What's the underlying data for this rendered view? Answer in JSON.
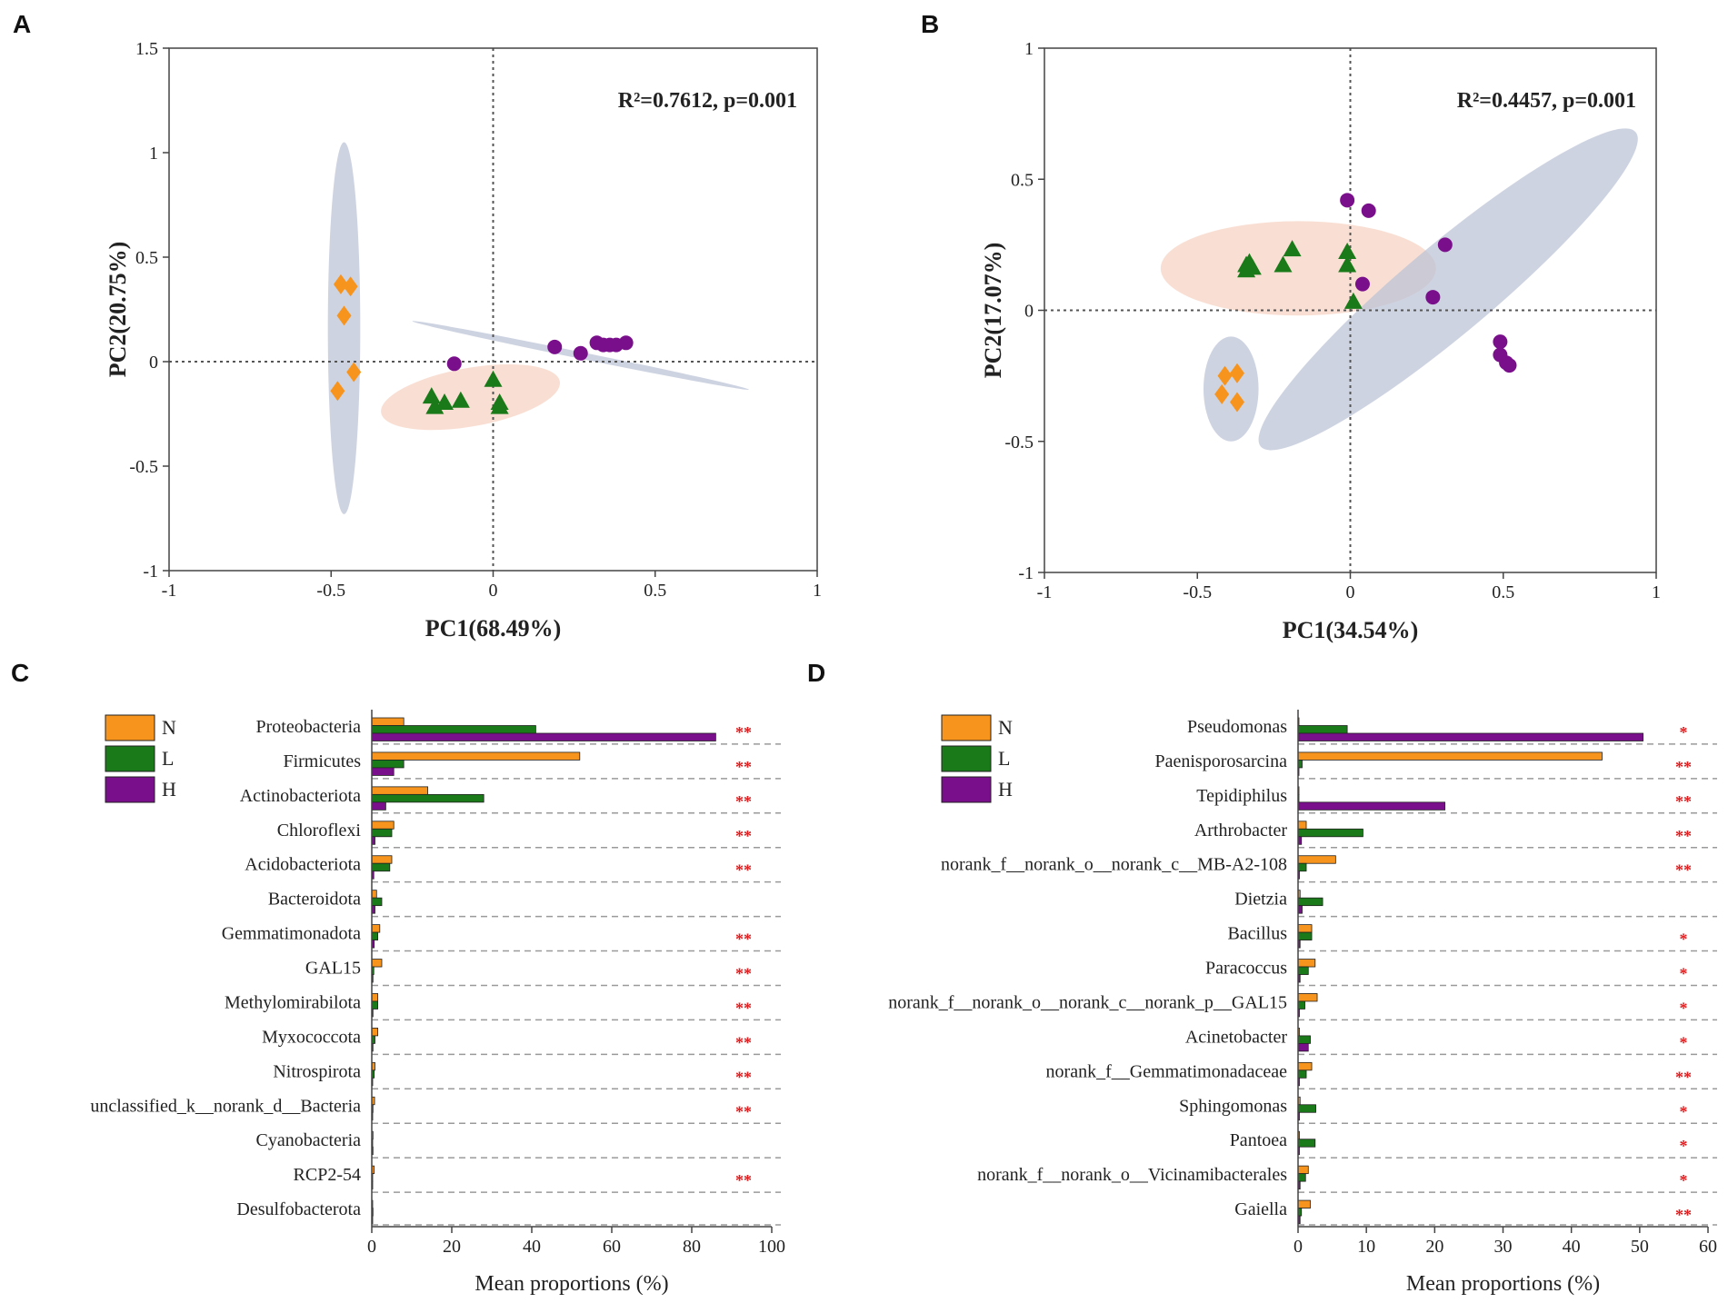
{
  "colors": {
    "N": "#f7941d",
    "L": "#1a7a1a",
    "H": "#7a0f8c",
    "ellipse_blue": "#b9c0d4",
    "ellipse_pink": "#f5c9b5",
    "sig": "#e31a1c"
  },
  "chart_data": [
    {
      "panel": "A",
      "type": "scatter",
      "xlabel": "PC1(68.49%)",
      "ylabel": "PC2(20.75%)",
      "xlim": [
        -1,
        1
      ],
      "ylim": [
        -1,
        1.5
      ],
      "xticks": [
        "-1",
        "-0.5",
        "0",
        "0.5",
        "1"
      ],
      "yticks": [
        "-1",
        "-0.5",
        "0",
        "0.5",
        "1",
        "1.5"
      ],
      "annotation": "R²=0.7612, p=0.001",
      "series": [
        {
          "name": "N",
          "marker": "diamond",
          "points": [
            [
              -0.47,
              0.37
            ],
            [
              -0.44,
              0.36
            ],
            [
              -0.46,
              0.22
            ],
            [
              -0.43,
              -0.05
            ],
            [
              -0.48,
              -0.14
            ]
          ]
        },
        {
          "name": "L",
          "marker": "triangle",
          "points": [
            [
              -0.19,
              -0.17
            ],
            [
              -0.18,
              -0.22
            ],
            [
              -0.15,
              -0.2
            ],
            [
              -0.1,
              -0.19
            ],
            [
              0.0,
              -0.09
            ],
            [
              0.02,
              -0.2
            ],
            [
              0.02,
              -0.22
            ]
          ]
        },
        {
          "name": "H",
          "marker": "circle",
          "points": [
            [
              -0.12,
              -0.01
            ],
            [
              0.19,
              0.07
            ],
            [
              0.27,
              0.04
            ],
            [
              0.32,
              0.09
            ],
            [
              0.34,
              0.08
            ],
            [
              0.36,
              0.08
            ],
            [
              0.38,
              0.08
            ],
            [
              0.41,
              0.09
            ]
          ]
        }
      ],
      "ellipses": [
        {
          "group": "N",
          "color": "blue",
          "center": [
            -0.46,
            0.16
          ],
          "rx": 0.05,
          "ry": 0.89,
          "angle": 0
        },
        {
          "group": "L",
          "color": "pink",
          "center": [
            -0.07,
            -0.17
          ],
          "rx": 0.28,
          "ry": 0.14,
          "angle": 10
        },
        {
          "group": "H",
          "color": "blue",
          "center": [
            0.27,
            0.03
          ],
          "rx": 0.53,
          "ry": 0.016,
          "angle": -11.5
        }
      ]
    },
    {
      "panel": "B",
      "type": "scatter",
      "xlabel": "PC1(34.54%)",
      "ylabel": "PC2(17.07%)",
      "xlim": [
        -1,
        1
      ],
      "ylim": [
        -1,
        1
      ],
      "xticks": [
        "-1",
        "-0.5",
        "0",
        "0.5",
        "1"
      ],
      "yticks": [
        "-1",
        "-0.5",
        "0",
        "0.5",
        "1"
      ],
      "annotation": "R²=0.4457, p=0.001",
      "series": [
        {
          "name": "N",
          "marker": "diamond",
          "points": [
            [
              -0.41,
              -0.25
            ],
            [
              -0.37,
              -0.24
            ],
            [
              -0.42,
              -0.32
            ],
            [
              -0.37,
              -0.35
            ]
          ]
        },
        {
          "name": "L",
          "marker": "triangle",
          "points": [
            [
              -0.34,
              0.17
            ],
            [
              -0.33,
              0.18
            ],
            [
              -0.32,
              0.16
            ],
            [
              -0.34,
              0.15
            ],
            [
              -0.22,
              0.17
            ],
            [
              -0.19,
              0.23
            ],
            [
              -0.01,
              0.22
            ],
            [
              -0.01,
              0.17
            ],
            [
              0.01,
              0.03
            ]
          ]
        },
        {
          "name": "H",
          "marker": "circle",
          "points": [
            [
              -0.01,
              0.42
            ],
            [
              0.06,
              0.38
            ],
            [
              0.04,
              0.1
            ],
            [
              0.31,
              0.25
            ],
            [
              0.27,
              0.05
            ],
            [
              0.49,
              -0.12
            ],
            [
              0.49,
              -0.17
            ],
            [
              0.51,
              -0.2
            ],
            [
              0.52,
              -0.21
            ]
          ]
        }
      ],
      "ellipses": [
        {
          "group": "N",
          "color": "blue",
          "center": [
            -0.39,
            -0.3
          ],
          "rx": 0.09,
          "ry": 0.2,
          "angle": 0
        },
        {
          "group": "L",
          "color": "pink",
          "center": [
            -0.17,
            0.16
          ],
          "rx": 0.45,
          "ry": 0.18,
          "angle": 0
        },
        {
          "group": "H",
          "color": "blue",
          "center": [
            0.32,
            0.08
          ],
          "rx": 0.8,
          "ry": 0.17,
          "angle": 40
        }
      ]
    },
    {
      "panel": "C",
      "type": "bar",
      "orientation": "horizontal",
      "xlabel": "Mean proportions (%)",
      "xlim": [
        0,
        100
      ],
      "xticks": [
        "0",
        "20",
        "40",
        "60",
        "80",
        "100"
      ],
      "legend": [
        "N",
        "L",
        "H"
      ],
      "categories": [
        "Proteobacteria",
        "Firmicutes",
        "Actinobacteriota",
        "Chloroflexi",
        "Acidobacteriota",
        "Bacteroidota",
        "Gemmatimonadota",
        "GAL15",
        "Methylomirabilota",
        "Myxococcota",
        "Nitrospirota",
        "unclassified_k__norank_d__Bacteria",
        "Cyanobacteria",
        "RCP2-54",
        "Desulfobacterota"
      ],
      "series": [
        {
          "name": "N",
          "values": [
            8,
            52,
            14,
            5.5,
            5,
            1.2,
            2,
            2.5,
            1.5,
            1.5,
            0.8,
            0.7,
            0.3,
            0.6,
            0.2
          ]
        },
        {
          "name": "L",
          "values": [
            41,
            8,
            28,
            5,
            4.5,
            2.5,
            1.5,
            0.5,
            1.5,
            0.8,
            0.6,
            0.3,
            0.2,
            0.2,
            0.3
          ]
        },
        {
          "name": "H",
          "values": [
            86,
            5.5,
            3.5,
            0.8,
            0.5,
            0.8,
            0.6,
            0.3,
            0.3,
            0.3,
            0.2,
            0.2,
            0.3,
            0.1,
            0.1
          ]
        }
      ],
      "significance": [
        "**",
        "**",
        "**",
        "**",
        "**",
        "",
        "**",
        "**",
        "**",
        "**",
        "**",
        "**",
        "",
        "**",
        ""
      ]
    },
    {
      "panel": "D",
      "type": "bar",
      "orientation": "horizontal",
      "xlabel": "Mean proportions (%)",
      "xlim": [
        0,
        60
      ],
      "xticks": [
        "0",
        "10",
        "20",
        "30",
        "40",
        "50",
        "60"
      ],
      "legend": [
        "N",
        "L",
        "H"
      ],
      "categories": [
        "Pseudomonas",
        "Paenisporosarcina",
        "Tepidiphilus",
        "Arthrobacter",
        "norank_f__norank_o__norank_c__MB-A2-108",
        "Dietzia",
        "Bacillus",
        "Paracoccus",
        "norank_f__norank_o__norank_c__norank_p__GAL15",
        "Acinetobacter",
        "norank_f__Gemmatimonadaceae",
        "Sphingomonas",
        "Pantoea",
        "norank_f__norank_o__Vicinamibacterales",
        "Gaiella"
      ],
      "series": [
        {
          "name": "N",
          "values": [
            0.1,
            44.5,
            0.1,
            1.2,
            5.5,
            0.3,
            2,
            2.5,
            2.8,
            0.2,
            2,
            0.3,
            0.2,
            1.5,
            1.8
          ]
        },
        {
          "name": "L",
          "values": [
            7.2,
            0.6,
            0.1,
            9.5,
            1.2,
            3.6,
            2,
            1.5,
            1,
            1.8,
            1.2,
            2.6,
            2.5,
            1.1,
            0.5
          ]
        },
        {
          "name": "H",
          "values": [
            50.5,
            0.1,
            21.5,
            0.5,
            0.2,
            0.6,
            0.3,
            0.3,
            0.2,
            1.5,
            0.2,
            0.2,
            0.2,
            0.3,
            0.3
          ]
        }
      ],
      "significance": [
        "*",
        "**",
        "**",
        "**",
        "**",
        "",
        "*",
        "*",
        "*",
        "*",
        "**",
        "*",
        "*",
        "*",
        "**"
      ]
    }
  ]
}
